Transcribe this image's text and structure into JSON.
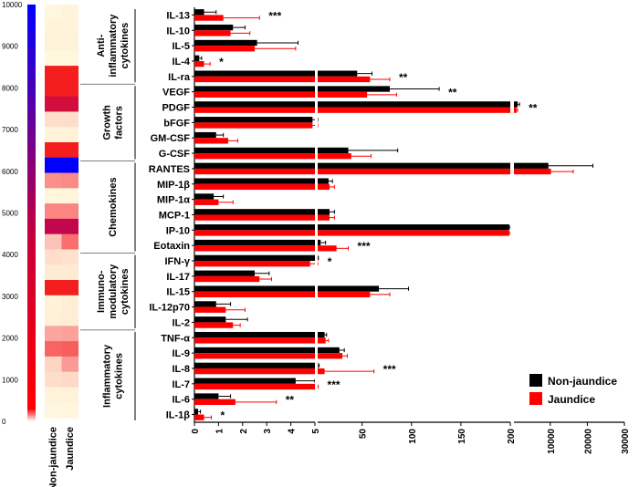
{
  "chart_data": {
    "type": "bar",
    "orientation": "horizontal",
    "xaxis_broken": true,
    "x_segments": [
      {
        "min": 0,
        "max": 5,
        "ticks": [
          0,
          1,
          2,
          3,
          4,
          5
        ]
      },
      {
        "min": 5,
        "max": 200,
        "ticks": [
          5,
          50,
          100,
          150,
          200
        ]
      },
      {
        "min": 200,
        "max": 30000,
        "ticks": [
          200,
          10000,
          20000,
          30000
        ]
      }
    ],
    "legend": [
      "Non-jaundice",
      "Jaundice"
    ],
    "colors": {
      "Non-jaundice": "#000000",
      "Jaundice": "#ff0000"
    },
    "groups": [
      {
        "name_lines": [
          "Anti-",
          "inflammatory",
          "cytokines"
        ],
        "start": 0,
        "end": 4
      },
      {
        "name_lines": [
          "Growth",
          "factors"
        ],
        "start": 5,
        "end": 9
      },
      {
        "name_lines": [
          "Chemokines"
        ],
        "start": 10,
        "end": 15
      },
      {
        "name_lines": [
          "Immuno-",
          "modulatory",
          "cytokines"
        ],
        "start": 16,
        "end": 20
      },
      {
        "name_lines": [
          "Inflammatory",
          "cytokines"
        ],
        "start": 21,
        "end": 26
      }
    ],
    "rows": [
      {
        "label": "IL-13",
        "non": 0.4,
        "non_err": 0.5,
        "jau": 1.2,
        "jau_err": 1.5,
        "sig": "***"
      },
      {
        "label": "IL-10",
        "non": 1.6,
        "non_err": 0.5,
        "jau": 1.5,
        "jau_err": 0.8,
        "sig": ""
      },
      {
        "label": "IL-5",
        "non": 2.6,
        "non_err": 1.7,
        "jau": 2.5,
        "jau_err": 1.7,
        "sig": ""
      },
      {
        "label": "IL-4",
        "non": 0.2,
        "non_err": 0.1,
        "jau": 0.4,
        "jau_err": 0.25,
        "sig": "*"
      },
      {
        "label": "IL-ra",
        "non": 45,
        "non_err": 15,
        "jau": 58,
        "jau_err": 20,
        "sig": "**"
      },
      {
        "label": "VEGF",
        "non": 78,
        "non_err": 50,
        "jau": 55,
        "jau_err": 30,
        "sig": "**"
      },
      {
        "label": "PDGF",
        "non": 1200,
        "non_err": 500,
        "jau": 900,
        "jau_err": 300,
        "sig": "**"
      },
      {
        "label": "bFGF",
        "non": 4.9,
        "non_err": 0.15,
        "jau": 4.9,
        "jau_err": 0.15,
        "sig": ""
      },
      {
        "label": "GM-CSF",
        "non": 0.9,
        "non_err": 0.3,
        "jau": 1.4,
        "jau_err": 0.4,
        "sig": ""
      },
      {
        "label": "G-CSF",
        "non": 36,
        "non_err": 50,
        "jau": 39,
        "jau_err": 20,
        "sig": ""
      },
      {
        "label": "RANTES",
        "non": 9500,
        "non_err": 12000,
        "jau": 10200,
        "jau_err": 6000,
        "sig": ""
      },
      {
        "label": "MIP-1β",
        "non": 16,
        "non_err": 4,
        "jau": 17,
        "jau_err": 5,
        "sig": ""
      },
      {
        "label": "MIP-1α",
        "non": 0.8,
        "non_err": 0.4,
        "jau": 1.0,
        "jau_err": 0.6,
        "sig": ""
      },
      {
        "label": "MCP-1",
        "non": 17,
        "non_err": 5,
        "jau": 17,
        "jau_err": 5,
        "sig": ""
      },
      {
        "label": "IP-10",
        "non": 199,
        "non_err": 1,
        "jau": 199,
        "jau_err": 1,
        "sig": ""
      },
      {
        "label": "Eotaxin",
        "non": 8,
        "non_err": 5,
        "jau": 24,
        "jau_err": 12,
        "sig": "***"
      },
      {
        "label": "IFN-γ",
        "non": 5.3,
        "non_err": 0.4,
        "jau": 4.8,
        "jau_err": 0.3,
        "sig": "*"
      },
      {
        "label": "IL-17",
        "non": 2.5,
        "non_err": 0.6,
        "jau": 2.7,
        "jau_err": 0.5,
        "sig": ""
      },
      {
        "label": "IL-15",
        "non": 67,
        "non_err": 30,
        "jau": 58,
        "jau_err": 20,
        "sig": ""
      },
      {
        "label": "IL-12p70",
        "non": 0.9,
        "non_err": 0.6,
        "jau": 1.3,
        "jau_err": 0.8,
        "sig": ""
      },
      {
        "label": "IL-2",
        "non": 1.3,
        "non_err": 0.9,
        "jau": 1.6,
        "jau_err": 0.3,
        "sig": ""
      },
      {
        "label": "TNF-α",
        "non": 12,
        "non_err": 2,
        "jau": 13,
        "jau_err": 3,
        "sig": ""
      },
      {
        "label": "IL-9",
        "non": 27,
        "non_err": 5,
        "jau": 30,
        "jau_err": 5,
        "sig": ""
      },
      {
        "label": "IL-8",
        "non": 5.5,
        "non_err": 1,
        "jau": 12,
        "jau_err": 50,
        "sig": "***"
      },
      {
        "label": "IL-7",
        "non": 4.2,
        "non_err": 0.8,
        "jau": 5,
        "jau_err": 0.5,
        "sig": "***"
      },
      {
        "label": "IL-6",
        "non": 1.0,
        "non_err": 0.5,
        "jau": 1.7,
        "jau_err": 1.7,
        "sig": "**"
      },
      {
        "label": "IL-1β",
        "non": 0.15,
        "non_err": 0.1,
        "jau": 0.4,
        "jau_err": 0.3,
        "sig": "*"
      }
    ],
    "heatmap": {
      "scale_min": 0,
      "scale_max": 10000,
      "scale_ticks": [
        0,
        1000,
        2000,
        3000,
        4000,
        5000,
        6000,
        7000,
        8000,
        9000,
        10000
      ],
      "columns": [
        "Non-jaundice",
        "Jaundice"
      ],
      "cells": [
        [
          20,
          50
        ],
        [
          60,
          60
        ],
        [
          80,
          80
        ],
        [
          10,
          20
        ],
        [
          5500,
          6000
        ],
        [
          7000,
          6800
        ],
        [
          8200,
          8200
        ],
        [
          300,
          300
        ],
        [
          50,
          80
        ],
        [
          3800,
          3900
        ],
        [
          10000,
          10000
        ],
        [
          1400,
          1500
        ],
        [
          30,
          40
        ],
        [
          1600,
          1600
        ],
        [
          8500,
          8500
        ],
        [
          600,
          2000
        ],
        [
          300,
          250
        ],
        [
          150,
          150
        ],
        [
          5600,
          5300
        ],
        [
          80,
          120
        ],
        [
          100,
          130
        ],
        [
          1000,
          1100
        ],
        [
          2200,
          2300
        ],
        [
          400,
          1200
        ],
        [
          300,
          350
        ],
        [
          50,
          80
        ],
        [
          20,
          30
        ]
      ]
    }
  }
}
